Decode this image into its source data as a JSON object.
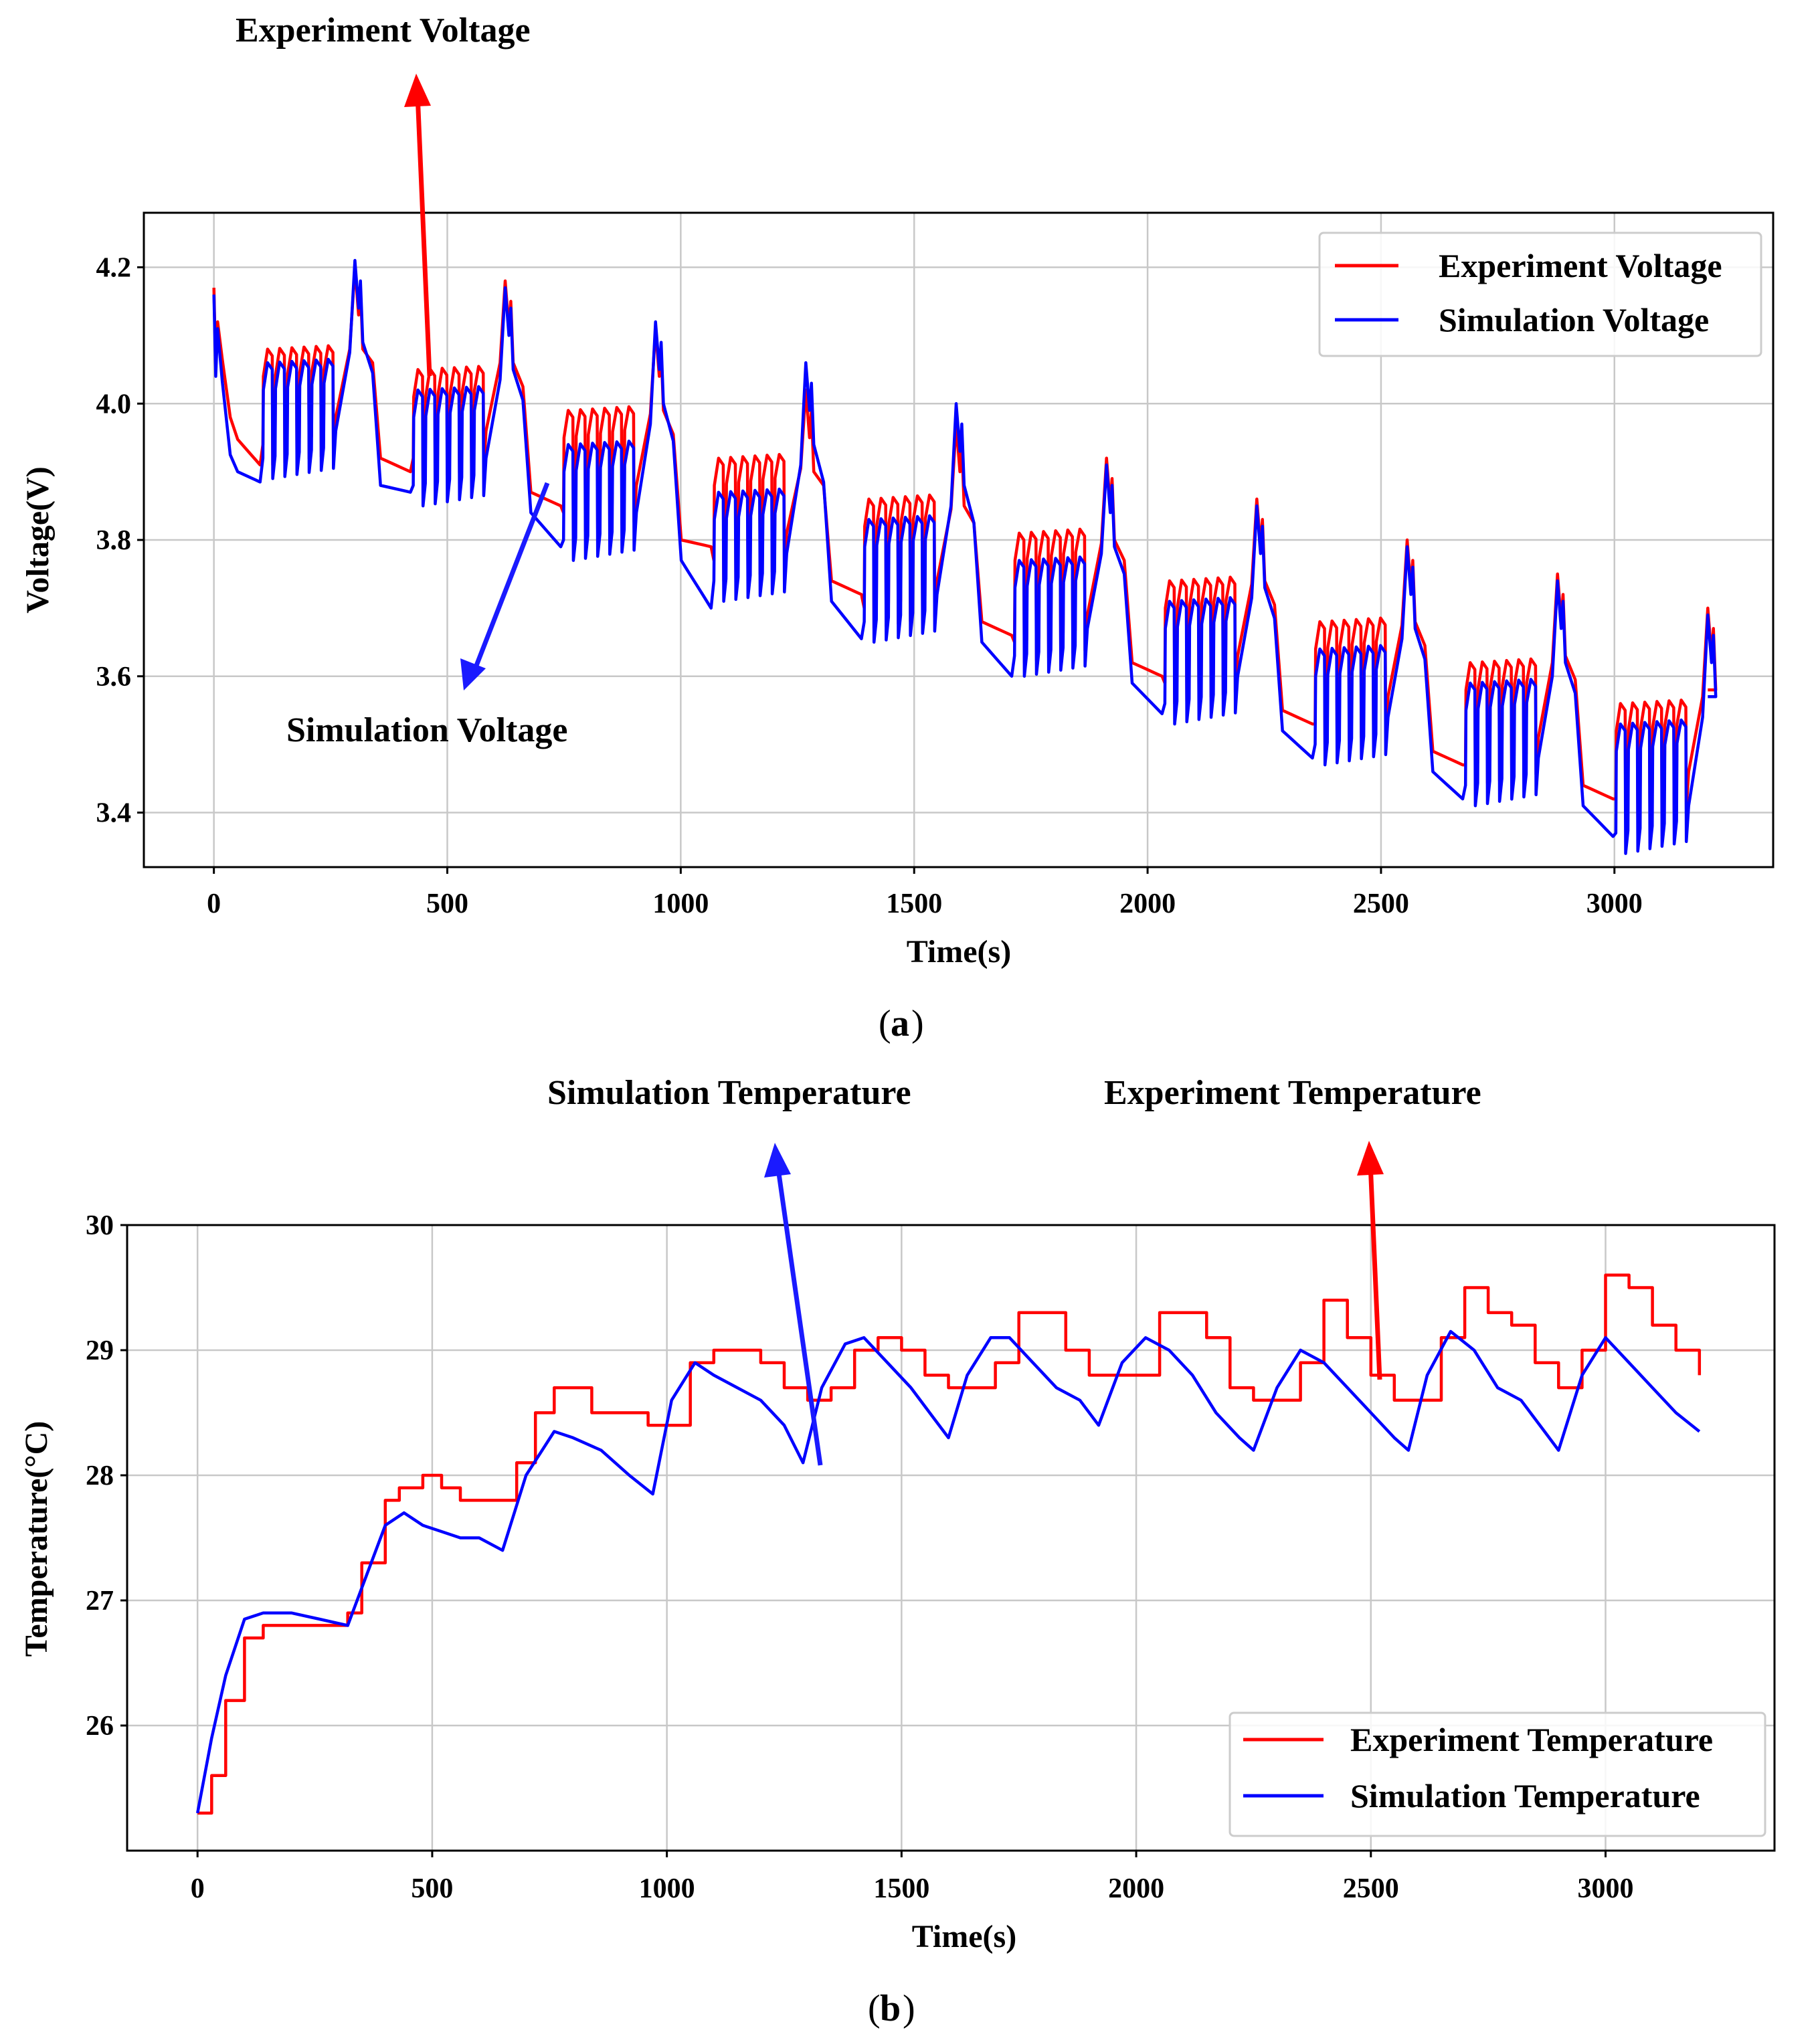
{
  "chart_data": [
    {
      "type": "line",
      "panel": "a",
      "caption": "(a)",
      "caption_letter": "a",
      "xlabel": "Time(s)",
      "ylabel": "Voltage(V)",
      "xlim": [
        -150,
        3340
      ],
      "ylim": [
        3.32,
        4.28
      ],
      "xticks": [
        0,
        500,
        1000,
        1500,
        2000,
        2500,
        3000
      ],
      "xtick_labels": [
        "0",
        "500",
        "1000",
        "1500",
        "2000",
        "2500",
        "3000"
      ],
      "yticks": [
        3.4,
        3.6,
        3.8,
        4.0,
        4.2
      ],
      "ytick_labels": [
        "3.4",
        "3.6",
        "3.8",
        "4.0",
        "4.2"
      ],
      "grid": true,
      "legend_position": "top-right",
      "series": [
        {
          "name": "Experiment Voltage",
          "color": "#ff0000",
          "pattern": {
            "kind": "voltage_cycles",
            "cycle_period": 322,
            "rest_floor": [
              3.91,
              3.9,
              3.85,
              3.79,
              3.72,
              3.66,
              3.6,
              3.53,
              3.47,
              3.42
            ],
            "rest_top": [
              3.96,
              3.92,
              3.87,
              3.8,
              3.74,
              3.68,
              3.62,
              3.55,
              3.49,
              3.44
            ],
            "pulse_high": [
              4.08,
              4.05,
              3.99,
              3.92,
              3.86,
              3.81,
              3.74,
              3.68,
              3.62,
              3.56
            ],
            "pulse_low": [
              3.96,
              3.94,
              3.86,
              3.79,
              3.72,
              3.67,
              3.61,
              3.55,
              3.49,
              3.44
            ],
            "peak": [
              4.2,
              4.18,
              4.11,
              4.02,
              3.97,
              3.92,
              3.86,
              3.8,
              3.75,
              3.7
            ],
            "start": 4.17,
            "end": 3.58
          }
        },
        {
          "name": "Simulation Voltage",
          "color": "#0000ff",
          "pattern": {
            "kind": "voltage_cycles",
            "cycle_period": 322,
            "rest_floor": [
              3.885,
              3.87,
              3.79,
              3.7,
              3.655,
              3.6,
              3.545,
              3.48,
              3.42,
              3.365
            ],
            "rest_top": [
              3.905,
              3.88,
              3.84,
              3.77,
              3.71,
              3.65,
              3.59,
              3.52,
              3.46,
              3.41
            ],
            "pulse_high": [
              4.06,
              4.02,
              3.94,
              3.87,
              3.83,
              3.77,
              3.71,
              3.64,
              3.59,
              3.53
            ],
            "pulse_low": [
              3.94,
              3.9,
              3.82,
              3.76,
              3.7,
              3.65,
              3.58,
              3.52,
              3.46,
              3.39
            ],
            "peak": [
              4.21,
              4.17,
              4.12,
              4.06,
              4.0,
              3.91,
              3.85,
              3.79,
              3.74,
              3.69
            ],
            "start": 4.16,
            "end": 3.57
          }
        }
      ],
      "annotations": [
        {
          "text": "Experiment Voltage",
          "color": "#ff0000"
        },
        {
          "text": "Simulation Voltage",
          "color": "#0000ff"
        }
      ]
    },
    {
      "type": "line",
      "panel": "b",
      "caption": "(b)",
      "caption_letter": "b",
      "xlabel": "Time(s)",
      "ylabel": "Temperature(°C)",
      "xlim": [
        -150,
        3360
      ],
      "ylim": [
        25.0,
        30.0
      ],
      "xticks": [
        0,
        500,
        1000,
        1500,
        2000,
        2500,
        3000
      ],
      "xtick_labels": [
        "0",
        "500",
        "1000",
        "1500",
        "2000",
        "2500",
        "3000"
      ],
      "yticks": [
        26,
        27,
        28,
        29,
        30
      ],
      "ytick_labels": [
        "26",
        "27",
        "28",
        "29",
        "30"
      ],
      "grid": true,
      "legend_position": "bottom-right",
      "series": [
        {
          "name": "Experiment Temperature",
          "color": "#ff0000",
          "x": [
            0,
            30,
            60,
            100,
            140,
            200,
            260,
            320,
            350,
            400,
            430,
            480,
            520,
            560,
            600,
            650,
            680,
            720,
            760,
            800,
            840,
            900,
            960,
            1000,
            1050,
            1100,
            1150,
            1200,
            1250,
            1300,
            1350,
            1400,
            1450,
            1500,
            1550,
            1600,
            1650,
            1700,
            1750,
            1800,
            1850,
            1900,
            1950,
            2000,
            2050,
            2100,
            2150,
            2200,
            2250,
            2300,
            2350,
            2400,
            2450,
            2500,
            2550,
            2600,
            2650,
            2700,
            2750,
            2800,
            2850,
            2900,
            2950,
            3000,
            3050,
            3100,
            3150,
            3200
          ],
          "y": [
            25.3,
            25.6,
            26.2,
            26.7,
            26.8,
            26.8,
            26.8,
            26.9,
            27.3,
            27.8,
            27.9,
            28.0,
            27.9,
            27.8,
            27.8,
            27.8,
            28.1,
            28.5,
            28.7,
            28.7,
            28.5,
            28.5,
            28.4,
            28.4,
            28.9,
            29.0,
            29.0,
            28.9,
            28.7,
            28.6,
            28.7,
            29.0,
            29.1,
            29.0,
            28.8,
            28.7,
            28.7,
            28.9,
            29.3,
            29.3,
            29.0,
            28.8,
            28.8,
            28.8,
            29.3,
            29.3,
            29.1,
            28.7,
            28.6,
            28.6,
            28.9,
            29.4,
            29.1,
            28.8,
            28.6,
            28.6,
            29.1,
            29.5,
            29.3,
            29.2,
            28.9,
            28.7,
            29.0,
            29.6,
            29.5,
            29.2,
            29.0,
            28.8
          ]
        },
        {
          "name": "Simulation Temperature",
          "color": "#0000ff",
          "x": [
            0,
            30,
            60,
            100,
            140,
            200,
            260,
            320,
            350,
            400,
            440,
            480,
            520,
            560,
            600,
            650,
            700,
            760,
            800,
            860,
            920,
            970,
            1010,
            1060,
            1100,
            1150,
            1200,
            1250,
            1290,
            1330,
            1380,
            1420,
            1470,
            1520,
            1560,
            1600,
            1640,
            1690,
            1730,
            1780,
            1830,
            1880,
            1920,
            1970,
            2020,
            2070,
            2120,
            2170,
            2220,
            2250,
            2300,
            2350,
            2400,
            2450,
            2500,
            2550,
            2580,
            2620,
            2670,
            2720,
            2770,
            2820,
            2870,
            2900,
            2950,
            3000,
            3050,
            3100,
            3150,
            3200
          ],
          "y": [
            25.3,
            25.9,
            26.4,
            26.85,
            26.9,
            26.9,
            26.85,
            26.8,
            27.1,
            27.6,
            27.7,
            27.6,
            27.55,
            27.5,
            27.5,
            27.4,
            28.0,
            28.35,
            28.3,
            28.2,
            28.0,
            27.85,
            28.6,
            28.9,
            28.8,
            28.7,
            28.6,
            28.4,
            28.1,
            28.7,
            29.05,
            29.1,
            28.9,
            28.7,
            28.5,
            28.3,
            28.8,
            29.1,
            29.1,
            28.9,
            28.7,
            28.6,
            28.4,
            28.9,
            29.1,
            29.0,
            28.8,
            28.5,
            28.3,
            28.2,
            28.7,
            29.0,
            28.9,
            28.7,
            28.5,
            28.3,
            28.2,
            28.8,
            29.15,
            29.0,
            28.7,
            28.6,
            28.35,
            28.2,
            28.8,
            29.1,
            28.9,
            28.7,
            28.5,
            28.35
          ]
        }
      ],
      "annotations": [
        {
          "text": "Simulation Temperature",
          "color": "#0000ff"
        },
        {
          "text": "Experiment Temperature",
          "color": "#ff0000"
        }
      ]
    }
  ]
}
